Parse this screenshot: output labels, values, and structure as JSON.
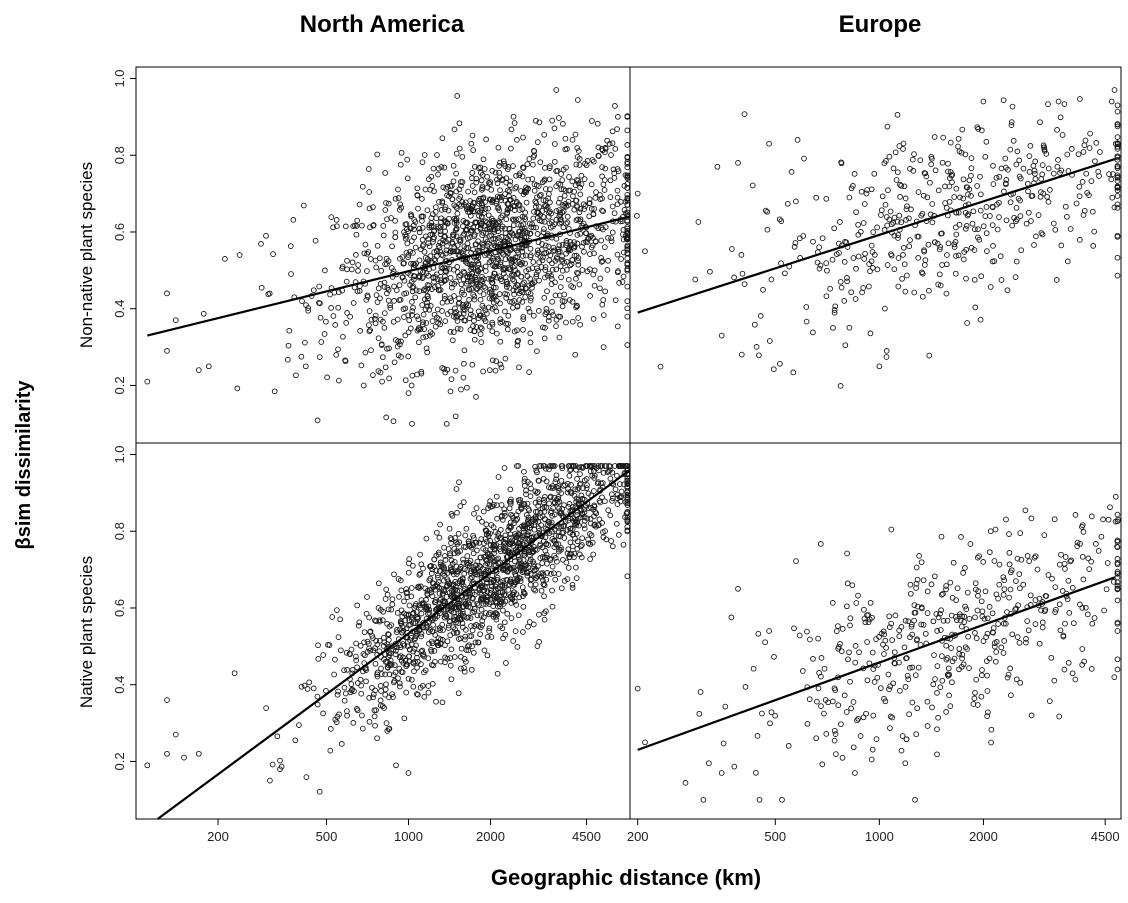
{
  "figure": {
    "col_titles": [
      "North America",
      "Europe"
    ],
    "row_labels": [
      "Non-native plant species",
      "Native plant species"
    ],
    "xlabel": "Geographic distance (km)",
    "ylabel": "βsim dissimilarity"
  },
  "chart_data": [
    {
      "type": "scatter",
      "region": "North America",
      "species_group": "Non-native plant species",
      "x_scale": "log",
      "xlim": [
        100,
        6500
      ],
      "ylim": [
        0.05,
        1.03
      ],
      "x_ticks": [
        200,
        500,
        1000,
        2000,
        4500
      ],
      "y_ticks": [
        0.2,
        0.4,
        0.6,
        0.8,
        1.0
      ],
      "y_tick_labels": [
        "0.2",
        "0.4",
        "0.6",
        "0.8",
        "1.0"
      ],
      "fit_line": [
        [
          110,
          0.33
        ],
        [
          6500,
          0.64
        ]
      ],
      "point_count": 1700,
      "points_sample": [
        [
          110,
          0.21
        ],
        [
          130,
          0.29
        ],
        [
          130,
          0.44
        ],
        [
          140,
          0.37
        ],
        [
          170,
          0.24
        ],
        [
          185,
          0.25
        ],
        [
          240,
          0.54
        ],
        [
          300,
          0.59
        ],
        [
          420,
          0.25
        ],
        [
          800,
          0.21
        ],
        [
          1000,
          0.18
        ],
        [
          1700,
          0.83
        ],
        [
          2500,
          0.84
        ],
        [
          4000,
          0.84
        ],
        [
          5200,
          0.3
        ],
        [
          6200,
          0.72
        ]
      ]
    },
    {
      "type": "scatter",
      "region": "Europe",
      "species_group": "Non-native plant species",
      "x_scale": "log",
      "xlim": [
        190,
        5000
      ],
      "ylim": [
        0.05,
        1.03
      ],
      "x_ticks": [
        200,
        500,
        1000,
        2000,
        4500
      ],
      "y_ticks": [
        0.2,
        0.4,
        0.6,
        0.8,
        1.0
      ],
      "fit_line": [
        [
          200,
          0.39
        ],
        [
          4800,
          0.79
        ]
      ],
      "point_count": 500,
      "points_sample": [
        [
          200,
          0.7
        ],
        [
          210,
          0.55
        ],
        [
          340,
          0.77
        ],
        [
          350,
          0.33
        ],
        [
          390,
          0.78
        ],
        [
          480,
          0.83
        ],
        [
          580,
          0.84
        ],
        [
          1000,
          0.25
        ],
        [
          1050,
          0.29
        ],
        [
          2000,
          0.94
        ],
        [
          3300,
          0.94
        ],
        [
          4700,
          0.94
        ],
        [
          4900,
          0.83
        ]
      ]
    },
    {
      "type": "scatter",
      "region": "North America",
      "species_group": "Native plant species",
      "x_scale": "log",
      "xlim": [
        100,
        6500
      ],
      "ylim": [
        0.05,
        1.03
      ],
      "x_ticks": [
        200,
        500,
        1000,
        2000,
        4500
      ],
      "y_ticks": [
        0.2,
        0.4,
        0.6,
        0.8,
        1.0
      ],
      "y_tick_labels": [
        "0.2",
        "0.4",
        "0.6",
        "0.8",
        "1.0"
      ],
      "fit_line": [
        [
          120,
          0.05
        ],
        [
          6500,
          0.96
        ]
      ],
      "point_count": 1700,
      "points_sample": [
        [
          110,
          0.19
        ],
        [
          130,
          0.36
        ],
        [
          130,
          0.22
        ],
        [
          140,
          0.27
        ],
        [
          150,
          0.21
        ],
        [
          170,
          0.22
        ],
        [
          230,
          0.43
        ],
        [
          310,
          0.15
        ],
        [
          900,
          0.19
        ],
        [
          1000,
          0.17
        ],
        [
          1500,
          0.91
        ],
        [
          2500,
          0.97
        ],
        [
          4500,
          0.97
        ],
        [
          6000,
          0.97
        ]
      ]
    },
    {
      "type": "scatter",
      "region": "Europe",
      "species_group": "Native plant species",
      "x_scale": "log",
      "xlim": [
        190,
        5000
      ],
      "ylim": [
        0.05,
        1.03
      ],
      "x_ticks": [
        200,
        500,
        1000,
        2000,
        4500
      ],
      "y_ticks": [
        0.2,
        0.4,
        0.6,
        0.8,
        1.0
      ],
      "fit_line": [
        [
          200,
          0.23
        ],
        [
          4800,
          0.68
        ]
      ],
      "point_count": 500,
      "points_sample": [
        [
          200,
          0.39
        ],
        [
          210,
          0.25
        ],
        [
          350,
          0.17
        ],
        [
          390,
          0.65
        ],
        [
          450,
          0.1
        ],
        [
          480,
          0.54
        ],
        [
          850,
          0.17
        ],
        [
          2100,
          0.8
        ],
        [
          3000,
          0.79
        ],
        [
          4600,
          0.83
        ],
        [
          4900,
          0.83
        ]
      ]
    }
  ]
}
